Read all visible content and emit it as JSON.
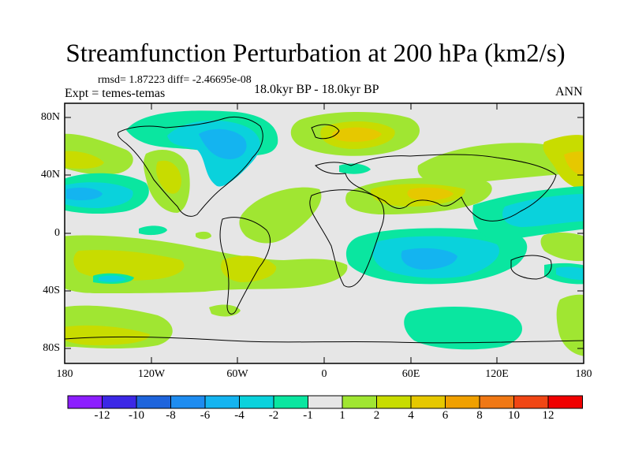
{
  "title": "Streamfunction Perturbation at 200 hPa (km2/s)",
  "stats": "rmsd= 1.87223 diff= -2.46695e-08",
  "experiment": "Expt = temes-temas",
  "period": "18.0kyr BP - 18.0kyr BP",
  "season": "ANN",
  "lat_labels": [
    "80N",
    "40N",
    "0",
    "40S",
    "80S"
  ],
  "lon_labels": [
    "180",
    "120W",
    "60W",
    "0",
    "60E",
    "120E",
    "180"
  ],
  "colorbar": {
    "colors": [
      "#8c1eff",
      "#3c28e6",
      "#1e64dc",
      "#1e8cf0",
      "#14b4f0",
      "#0ad2dc",
      "#0ae6a0",
      "#e6e6e6",
      "#a0e632",
      "#c8dc00",
      "#e6c800",
      "#f0a000",
      "#f07814",
      "#f04614",
      "#f00000"
    ],
    "labels": [
      "-12",
      "-10",
      "-8",
      "-6",
      "-4",
      "-2",
      "-1",
      "1",
      "2",
      "4",
      "6",
      "8",
      "10",
      "12"
    ]
  }
}
